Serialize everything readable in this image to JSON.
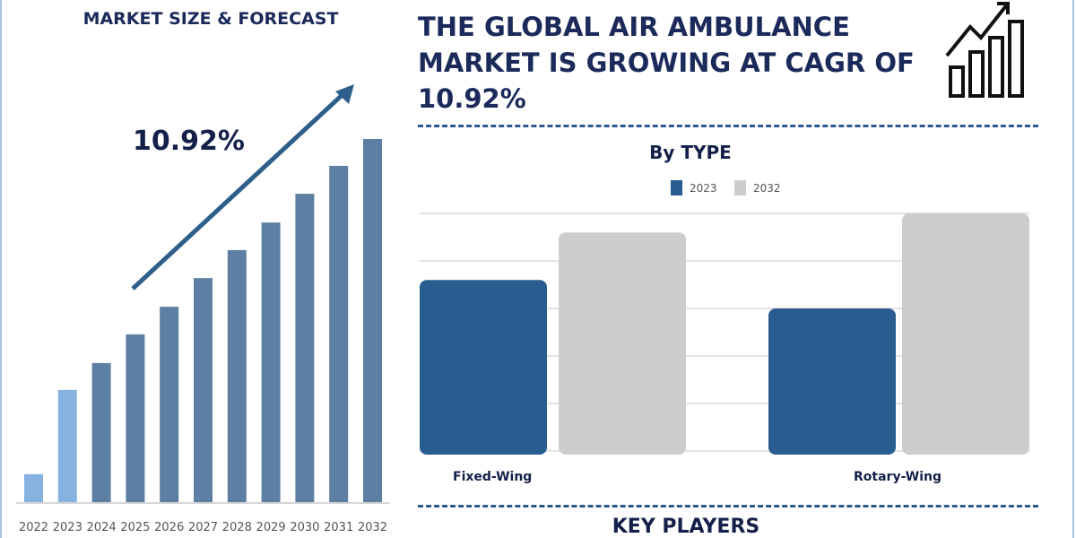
{
  "left_panel": {
    "title": "MARKET SIZE & FORECAST",
    "cagr": "10.92%"
  },
  "header": {
    "title": "THE GLOBAL AIR AMBULANCE MARKET IS GROWING AT CAGR OF 10.92%",
    "icon": "growth-bar-chart-arrow-icon"
  },
  "right_panel": {
    "section_title": "KEY PLAYERS"
  },
  "colors": {
    "forecast_bar": "#5d7fa3",
    "historic_bar": "#85b2df",
    "type_2023": "#2a5d8f",
    "type_2032": "#cdcdcd",
    "arrow": "#2e5f8a",
    "title": "#1b2a5a"
  },
  "chart_data": [
    {
      "type": "bar",
      "title": "MARKET SIZE & FORECAST",
      "categories": [
        "2022",
        "2023",
        "2024",
        "2025",
        "2026",
        "2027",
        "2028",
        "2029",
        "2030",
        "2031",
        "2032"
      ],
      "values": [
        7.7,
        30.9,
        38.3,
        46.2,
        53.8,
        61.7,
        69.4,
        77.0,
        84.9,
        92.6,
        100
      ],
      "annotation": "10.92%",
      "grid": false
    },
    {
      "type": "bar",
      "title": "By TYPE",
      "categories": [
        "Fixed-Wing",
        "Rotary-Wing"
      ],
      "series": [
        {
          "name": "2023",
          "values": [
            3.6,
            3.0
          ]
        },
        {
          "name": "2032",
          "values": [
            4.6,
            5.0
          ]
        }
      ],
      "ylim": [
        0,
        5
      ],
      "grid": true,
      "legend": "top"
    }
  ]
}
